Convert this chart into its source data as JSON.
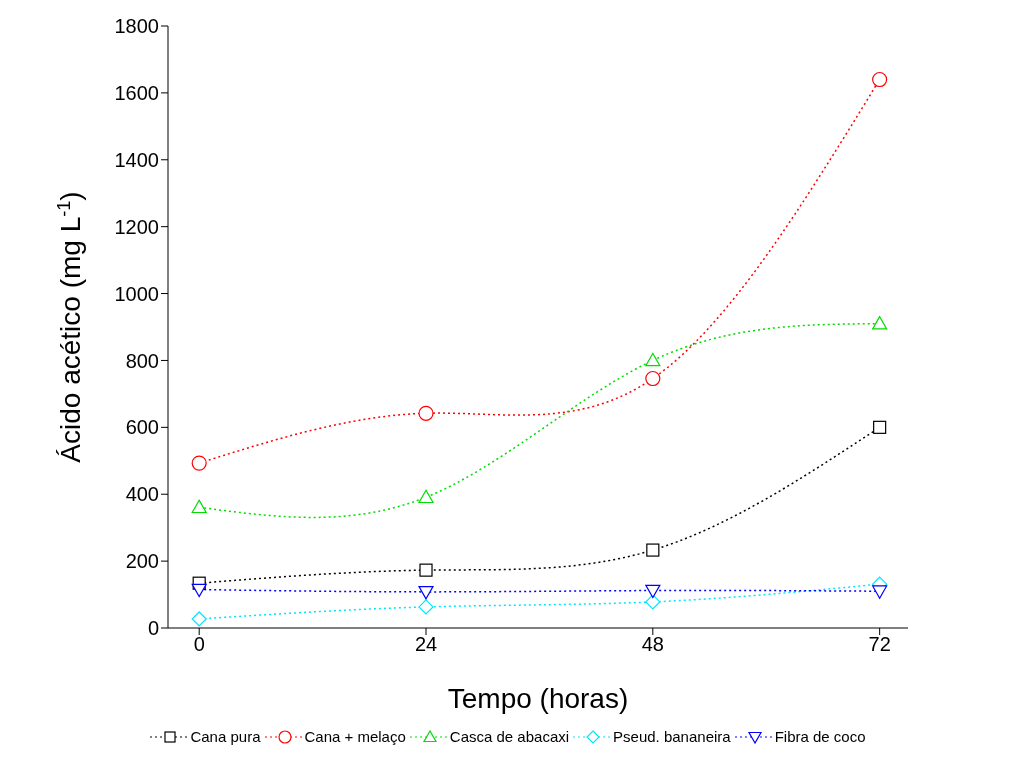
{
  "chart_data": {
    "type": "line",
    "xlabel": "Tempo (horas)",
    "ylabel": "Ácido acético (mg L$^{-1}$)",
    "x": [
      0,
      24,
      48,
      72
    ],
    "xlim": [
      -3.3,
      75
    ],
    "xticks": [
      0,
      24,
      48,
      72
    ],
    "ylim": [
      0,
      1800
    ],
    "yticks": [
      0,
      200,
      400,
      600,
      800,
      1000,
      1200,
      1400,
      1600,
      1800
    ],
    "line_style": "dotted",
    "grid": false,
    "legend": "bottom",
    "series": [
      {
        "name": "Cana pura",
        "color": "#000000",
        "marker": "square",
        "values": [
          134,
          173,
          233,
          600
        ]
      },
      {
        "name": "Cana + melaço",
        "color": "#ff0000",
        "marker": "circle",
        "values": [
          493,
          642,
          746,
          1640
        ]
      },
      {
        "name": "Casca de abacaxi",
        "color": "#00dd00",
        "marker": "triangle",
        "values": [
          361,
          391,
          800,
          910
        ]
      },
      {
        "name": "Pseud. bananeira",
        "color": "#00e5ff",
        "marker": "diamond",
        "values": [
          27,
          63,
          78,
          131
        ]
      },
      {
        "name": "Fibra de coco",
        "color": "#0000ff",
        "marker": "triangle-down",
        "values": [
          115,
          108,
          112,
          110
        ]
      }
    ]
  }
}
